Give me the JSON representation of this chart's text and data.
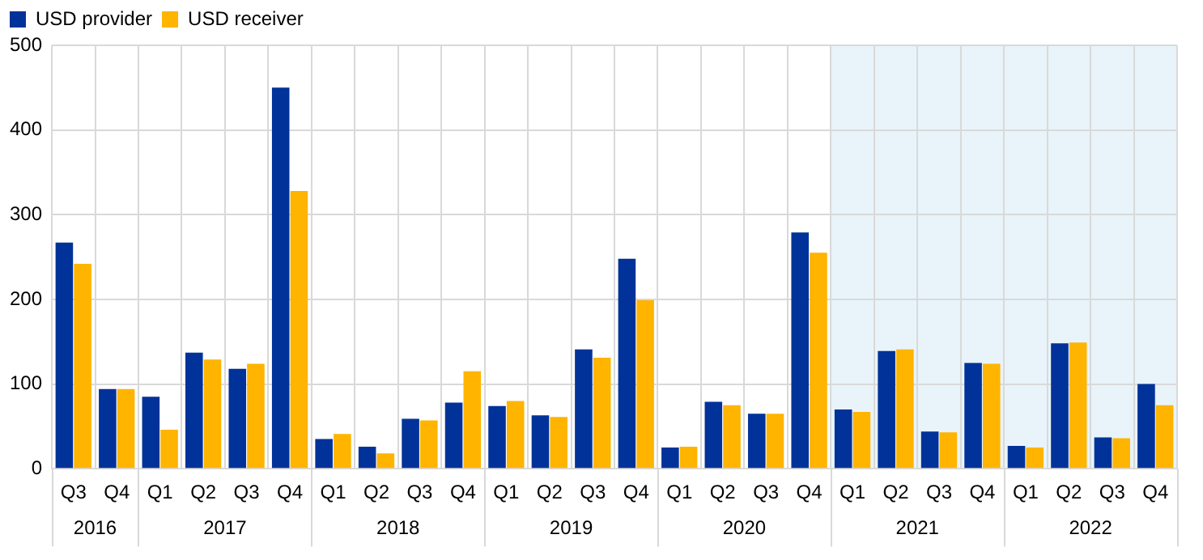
{
  "chart_data": {
    "type": "bar",
    "categories": [
      "Q3",
      "Q4",
      "Q1",
      "Q2",
      "Q3",
      "Q4",
      "Q1",
      "Q2",
      "Q3",
      "Q4",
      "Q1",
      "Q2",
      "Q3",
      "Q4",
      "Q1",
      "Q2",
      "Q3",
      "Q4",
      "Q1",
      "Q2",
      "Q3",
      "Q4",
      "Q1",
      "Q2",
      "Q3",
      "Q4"
    ],
    "annotations": [
      "2016",
      "2017",
      "2018",
      "2019",
      "2020",
      "2021",
      "2022"
    ],
    "series": [
      {
        "name": "USD provider",
        "color": "#003299",
        "values": [
          267,
          94,
          85,
          137,
          118,
          450,
          35,
          26,
          59,
          78,
          74,
          63,
          141,
          248,
          25,
          79,
          65,
          279,
          70,
          139,
          44,
          125,
          27,
          148,
          37,
          100
        ]
      },
      {
        "name": "USD receiver",
        "color": "#ffb400",
        "values": [
          242,
          94,
          46,
          129,
          124,
          328,
          41,
          18,
          57,
          115,
          80,
          61,
          131,
          199,
          26,
          75,
          65,
          255,
          67,
          141,
          43,
          124,
          25,
          149,
          36,
          75
        ]
      }
    ],
    "ylim": [
      0,
      500
    ],
    "yticks": [
      0,
      100,
      200,
      300,
      400,
      500
    ],
    "grid": true,
    "legend": "top left"
  }
}
